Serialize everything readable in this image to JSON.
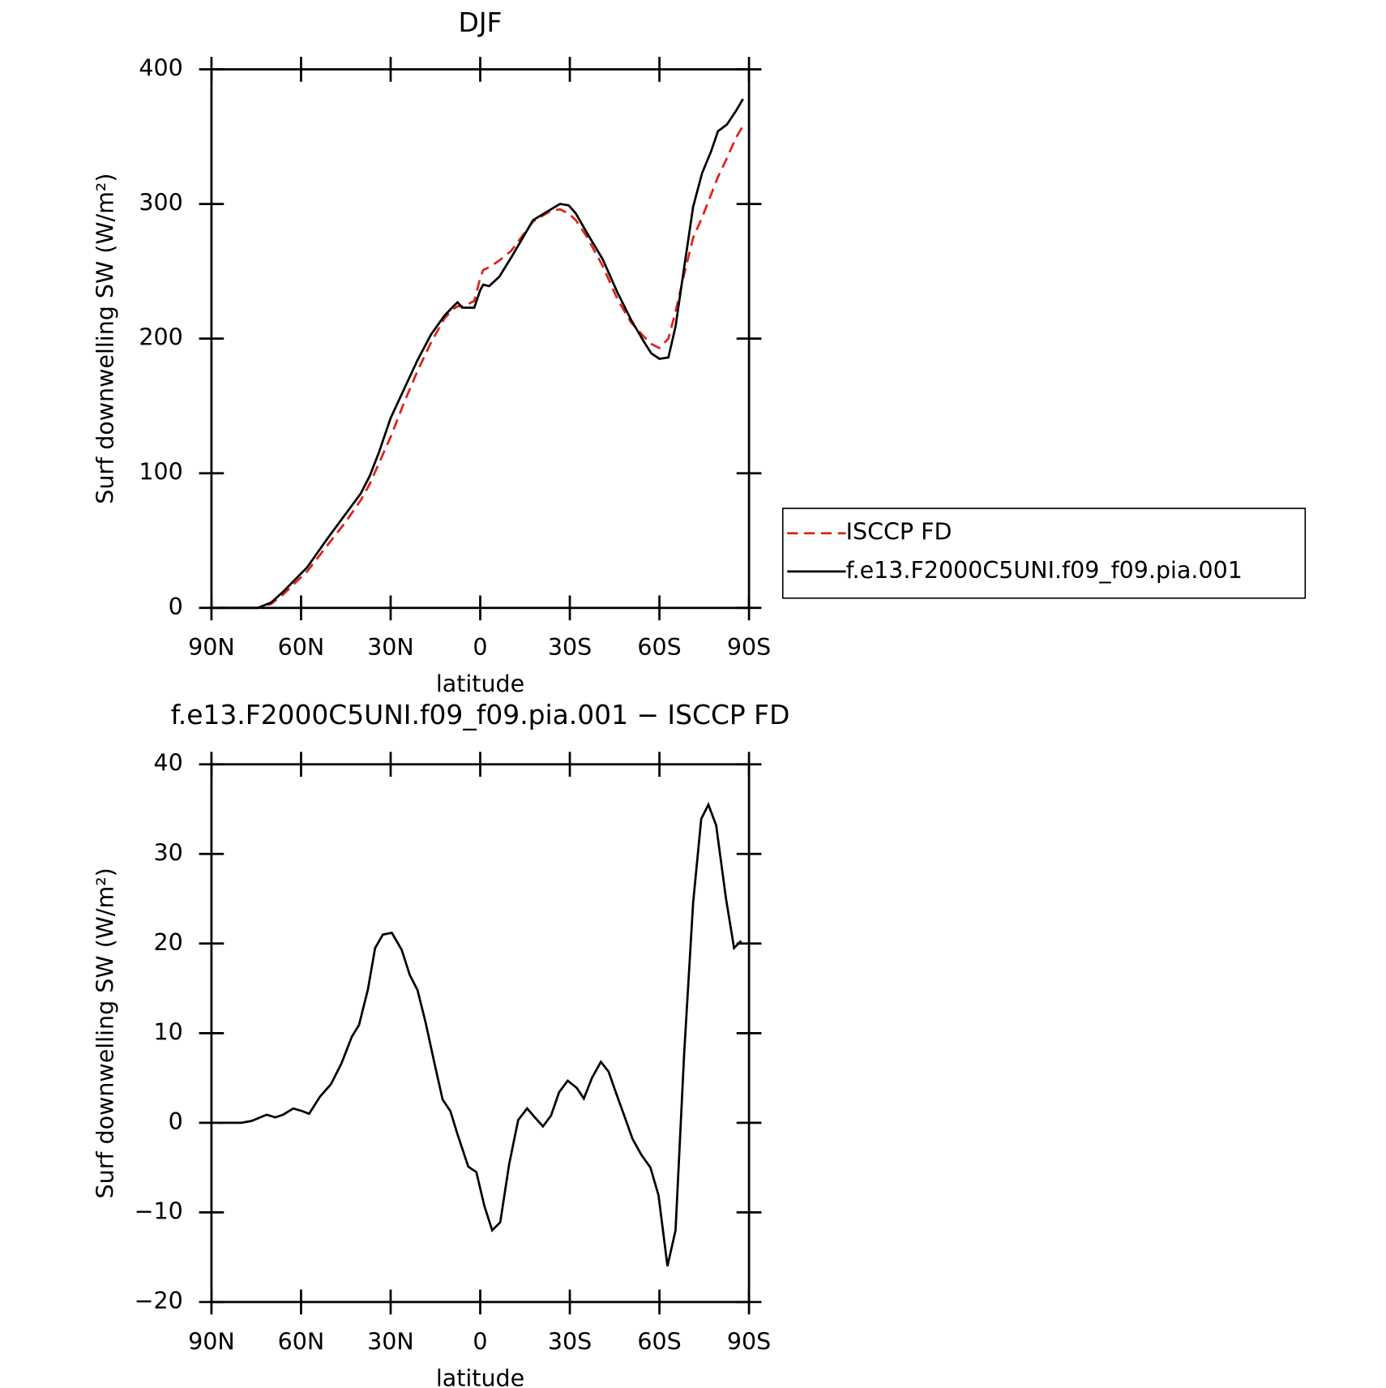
{
  "chart_data": [
    {
      "type": "line",
      "title": "DJF",
      "x_label": "latitude",
      "y_label": "Surf downwelling SW (W/m²)",
      "x": [
        88,
        80,
        74.5,
        70,
        66,
        58,
        51,
        45,
        40,
        37,
        34,
        30,
        25.4,
        21,
        16.5,
        12,
        9,
        7.6,
        6,
        4.6,
        2,
        0,
        -1,
        -3,
        -6.4,
        -10.3,
        -17.7,
        -23.7,
        -26.7,
        -29.6,
        -32,
        -35.6,
        -41,
        -46,
        -50.5,
        -55,
        -57.3,
        -60,
        -63,
        -65.4,
        -68.3,
        -71.3,
        -74.3,
        -77.3,
        -79.6,
        -82.6,
        -85.6,
        -88
      ],
      "series": [
        {
          "name": "ISCCP FD",
          "color": "#e0201b",
          "line_style": "dashed",
          "values": [
            0,
            0,
            0,
            3,
            10,
            27,
            47,
            64,
            80,
            92,
            107,
            127,
            153,
            176,
            197,
            215,
            222,
            224,
            224,
            225,
            228,
            245,
            251,
            253,
            258,
            265,
            287,
            295,
            296,
            293,
            288,
            276,
            254,
            229,
            212,
            201,
            196,
            193,
            200,
            220,
            248,
            275,
            290,
            307,
            320,
            334,
            349,
            358
          ]
        },
        {
          "name": "f.e13.F2000C5UNI.f09_f09.pia.001",
          "color": "#000000",
          "line_style": "solid",
          "values": [
            0,
            0,
            0,
            4,
            12,
            30,
            52,
            70,
            85,
            98,
            115,
            141,
            163,
            184,
            203,
            217,
            224,
            227,
            223,
            223,
            223,
            236,
            240,
            239,
            246,
            260,
            288,
            296,
            300,
            299,
            293,
            279,
            259,
            234,
            214,
            197,
            189,
            185,
            186,
            209,
            253,
            298,
            323,
            339,
            354,
            359,
            369,
            378
          ]
        }
      ],
      "xlim": [
        90,
        -90
      ],
      "xticks": [
        {
          "value": 90,
          "label": "90N"
        },
        {
          "value": 60,
          "label": "60N"
        },
        {
          "value": 30,
          "label": "30N"
        },
        0,
        {
          "value": -30,
          "label": "30S"
        },
        {
          "value": -60,
          "label": "60S"
        },
        {
          "value": -90,
          "label": "90S"
        }
      ],
      "ylim": [
        0,
        400
      ],
      "yticks": [
        0,
        100,
        200,
        300,
        400
      ],
      "legend": "right"
    },
    {
      "type": "line",
      "title": "f.e13.F2000C5UNI.f09_f09.pia.001 − ISCCP FD",
      "x_label": "latitude",
      "y_label": "Surf downwelling SW (W/m²)",
      "x": [
        87.6,
        80,
        76.6,
        71.5,
        68.6,
        66,
        62.6,
        59.6,
        57.3,
        53.7,
        50,
        46.5,
        43,
        40.6,
        37.6,
        35.2,
        32.6,
        29.6,
        26.3,
        23.6,
        21,
        18.3,
        15.3,
        12.6,
        10,
        7.6,
        4,
        1.3,
        -1.4,
        -4,
        -6.7,
        -9.7,
        -12.7,
        -15.7,
        -18.3,
        -21,
        -23.7,
        -26.4,
        -29.3,
        -32.3,
        -34.7,
        -37.4,
        -40.4,
        -43,
        -45.4,
        -48,
        -51,
        -54,
        -57,
        -59.7,
        -62.7,
        -65.4,
        -68.3,
        -71.3,
        -74,
        -76.4,
        -79,
        -82.3,
        -85,
        -87.4
      ],
      "series": [
        {
          "color": "#000000",
          "line_style": "solid",
          "values": [
            0,
            0,
            0.2,
            0.9,
            0.6,
            0.9,
            1.6,
            1.3,
            1,
            2.9,
            4.3,
            6.6,
            9.6,
            10.9,
            14.9,
            19.5,
            21,
            21.2,
            19.3,
            16.5,
            14.8,
            11.2,
            6.6,
            2.6,
            1.3,
            -1.3,
            -4.9,
            -5.5,
            -9.3,
            -12,
            -11.1,
            -4.6,
            0.3,
            1.6,
            0.6,
            -0.4,
            0.8,
            3.4,
            4.7,
            3.9,
            2.7,
            5,
            6.8,
            5.7,
            3.4,
            1,
            -1.8,
            -3.6,
            -5,
            -8.1,
            -16,
            -12,
            7.8,
            24.6,
            33.9,
            35.5,
            33.2,
            25,
            19.5,
            20.3
          ]
        }
      ],
      "xlim": [
        90,
        -90
      ],
      "xticks": [
        {
          "value": 90,
          "label": "90N"
        },
        {
          "value": 60,
          "label": "60N"
        },
        {
          "value": 30,
          "label": "30N"
        },
        0,
        {
          "value": -30,
          "label": "30S"
        },
        {
          "value": -60,
          "label": "60S"
        },
        {
          "value": -90,
          "label": "90S"
        }
      ],
      "ylim": [
        -20,
        40
      ],
      "yticks": [
        {
          "value": -20,
          "label": "−20"
        },
        {
          "value": -10,
          "label": "−10"
        },
        0,
        10,
        20,
        30,
        40
      ]
    }
  ]
}
